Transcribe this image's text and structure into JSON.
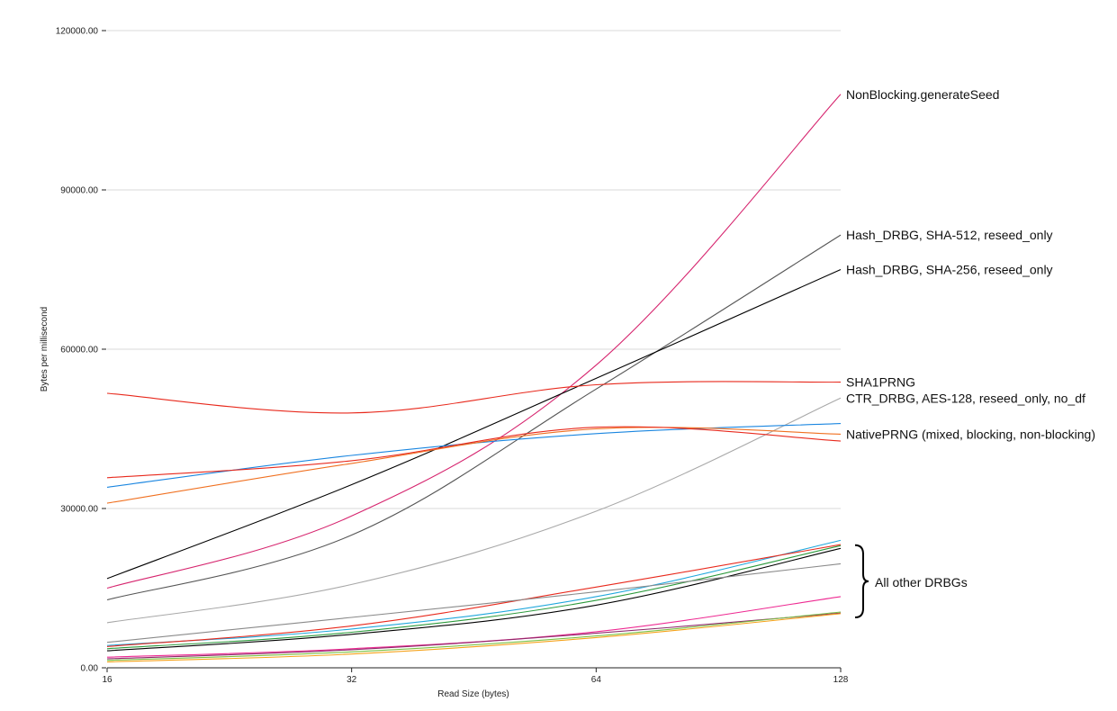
{
  "chart_data": {
    "type": "line",
    "x_scale": "log2",
    "x": [
      16,
      32,
      64,
      128
    ],
    "x_tick_labels": [
      "16",
      "32",
      "64",
      "128"
    ],
    "y_tick_labels": [
      "0.00",
      "30000.00",
      "60000.00",
      "90000.00",
      "120000.00"
    ],
    "xlabel": "Read Size (bytes)",
    "ylabel": "Bytes per millisecond",
    "ylim": [
      0,
      120000
    ],
    "grid": true,
    "legend": "none",
    "series": [
      {
        "color": "#d6246e",
        "values": [
          15000,
          28600,
          57000,
          108000
        ]
      },
      {
        "color": "#555555",
        "values": [
          12800,
          25000,
          52500,
          81500
        ]
      },
      {
        "color": "#000000",
        "values": [
          16800,
          34500,
          54500,
          75000
        ]
      },
      {
        "color": "#e8291c",
        "values": [
          51700,
          48000,
          53300,
          53800
        ]
      },
      {
        "color": "#a8a8a8",
        "values": [
          8500,
          15700,
          29500,
          50800
        ]
      },
      {
        "color": "#1a86e0",
        "values": [
          34000,
          40000,
          44100,
          46000
        ]
      },
      {
        "color": "#f07020",
        "values": [
          31000,
          38500,
          45000,
          44000
        ]
      },
      {
        "color": "#e8291c",
        "values": [
          35800,
          39000,
          45300,
          42700
        ]
      },
      {
        "color": "#1fa7dc",
        "values": [
          4200,
          7300,
          13400,
          24000
        ]
      },
      {
        "color": "#e8291c",
        "values": [
          4000,
          7900,
          15200,
          23200
        ]
      },
      {
        "color": "#2c9a3c",
        "values": [
          3600,
          6700,
          12700,
          23000
        ]
      },
      {
        "color": "#000000",
        "values": [
          3200,
          6300,
          11800,
          22500
        ]
      },
      {
        "color": "#8a8a8a",
        "values": [
          4800,
          9500,
          14300,
          19600
        ]
      },
      {
        "color": "#ee2a92",
        "values": [
          2000,
          3600,
          6800,
          13400
        ]
      },
      {
        "color": "#8e2a6a",
        "values": [
          1700,
          3400,
          6500,
          10300
        ]
      },
      {
        "color": "#7ac143",
        "values": [
          1400,
          3000,
          6000,
          10500
        ]
      },
      {
        "color": "#f5a21a",
        "values": [
          1100,
          2600,
          5700,
          10200
        ]
      }
    ],
    "annotations": [
      {
        "text": "NonBlocking.generateSeed",
        "y": 108000
      },
      {
        "text": "Hash_DRBG, SHA-512, reseed_only",
        "y": 81500
      },
      {
        "text": "Hash_DRBG, SHA-256, reseed_only",
        "y": 75000
      },
      {
        "text": "SHA1PRNG",
        "y": 53800
      },
      {
        "text": "CTR_DRBG, AES-128, reseed_only, no_df",
        "y": 50800
      },
      {
        "text": "NativePRNG (mixed, blocking, non-blocking)",
        "y": 44000
      },
      {
        "text": "All other DRBGs",
        "y": 16100
      }
    ],
    "bracket": {
      "y_range": [
        9500,
        23100
      ]
    }
  }
}
